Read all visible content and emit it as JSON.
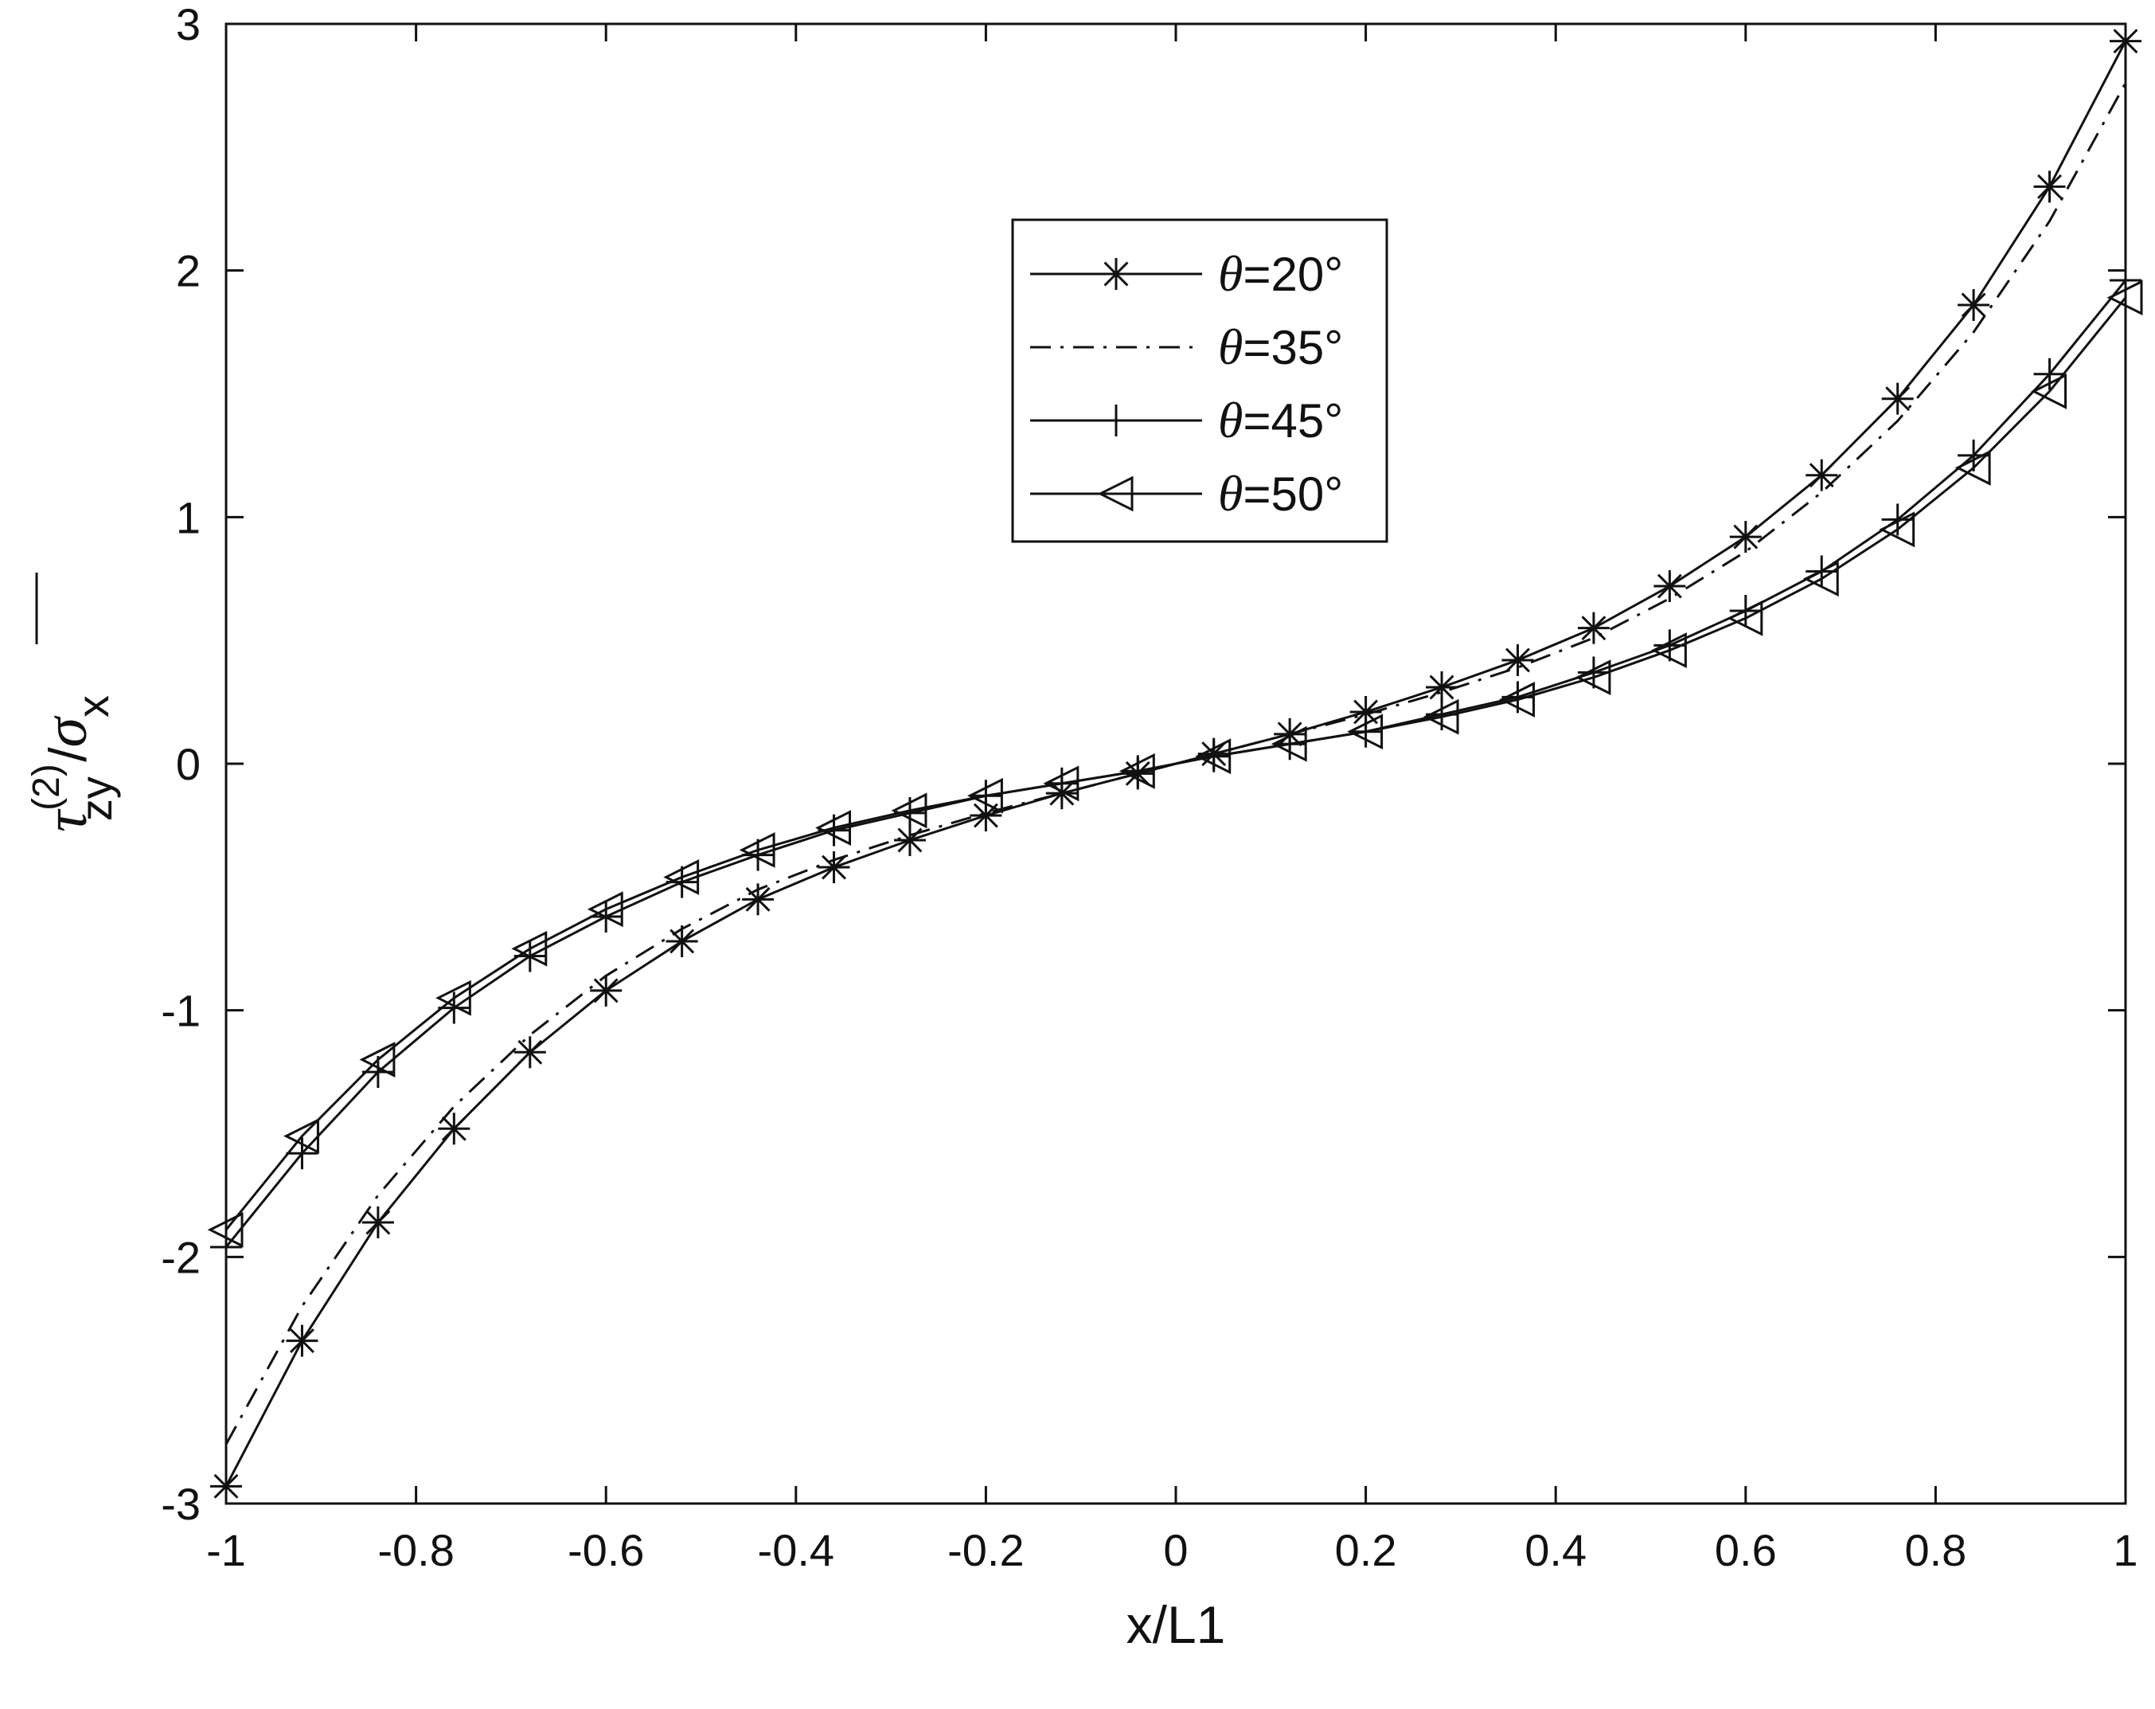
{
  "chart_data": {
    "type": "line",
    "xlabel": "x/L1",
    "ylabel": {
      "symbol": "τ",
      "superscript": "(2)",
      "subscript": "zy",
      "divider": "/",
      "denominator_symbol": "σ",
      "denominator_subscript": "x"
    },
    "xlim": [
      -1,
      1
    ],
    "ylim": [
      -3,
      3
    ],
    "xticks": [
      -1,
      -0.8,
      -0.6,
      -0.4,
      -0.2,
      0,
      0.2,
      0.4,
      0.6,
      0.8,
      1
    ],
    "xtick_labels": [
      "-1",
      "-0.8",
      "-0.6",
      "-0.4",
      "-0.2",
      "0",
      "0.2",
      "0.4",
      "0.6",
      "0.8",
      "1"
    ],
    "yticks": [
      -3,
      -2,
      -1,
      0,
      1,
      2,
      3
    ],
    "ytick_labels": [
      "-3",
      "-2",
      "-1",
      "0",
      "1",
      "2",
      "3"
    ],
    "grid": false,
    "legend_position": "top-center",
    "x": [
      -1,
      -0.92,
      -0.84,
      -0.76,
      -0.68,
      -0.6,
      -0.52,
      -0.44,
      -0.36,
      -0.28,
      -0.2,
      -0.12,
      -0.04,
      0.04,
      0.12,
      0.2,
      0.28,
      0.36,
      0.44,
      0.52,
      0.6,
      0.68,
      0.76,
      0.84,
      0.92,
      1
    ],
    "series": [
      {
        "name": "θ=20°",
        "line": "solid",
        "marker": "asterisk",
        "values": [
          -2.93,
          -2.34,
          -1.86,
          -1.48,
          -1.17,
          -0.92,
          -0.72,
          -0.55,
          -0.42,
          -0.31,
          -0.21,
          -0.12,
          -0.04,
          0.04,
          0.12,
          0.21,
          0.31,
          0.42,
          0.55,
          0.72,
          0.92,
          1.17,
          1.48,
          1.86,
          2.34,
          2.93
        ]
      },
      {
        "name": "θ=35°",
        "line": "dashdot",
        "marker": "none",
        "values": [
          -2.76,
          -2.2,
          -1.75,
          -1.39,
          -1.1,
          -0.86,
          -0.67,
          -0.51,
          -0.39,
          -0.29,
          -0.2,
          -0.12,
          -0.04,
          0.04,
          0.12,
          0.2,
          0.29,
          0.39,
          0.51,
          0.67,
          0.86,
          1.1,
          1.39,
          1.75,
          2.2,
          2.76
        ]
      },
      {
        "name": "θ=45°",
        "line": "solid",
        "marker": "plus",
        "values": [
          -1.96,
          -1.58,
          -1.25,
          -0.99,
          -0.78,
          -0.62,
          -0.48,
          -0.37,
          -0.27,
          -0.2,
          -0.13,
          -0.08,
          -0.03,
          0.03,
          0.08,
          0.13,
          0.2,
          0.27,
          0.37,
          0.48,
          0.62,
          0.78,
          0.99,
          1.25,
          1.58,
          1.96
        ]
      },
      {
        "name": "θ=50°",
        "line": "solid",
        "marker": "triangle-left",
        "values": [
          -1.89,
          -1.51,
          -1.2,
          -0.95,
          -0.75,
          -0.59,
          -0.46,
          -0.35,
          -0.26,
          -0.19,
          -0.13,
          -0.08,
          -0.03,
          0.03,
          0.08,
          0.13,
          0.19,
          0.26,
          0.35,
          0.46,
          0.59,
          0.75,
          0.95,
          1.2,
          1.51,
          1.89
        ]
      }
    ]
  }
}
